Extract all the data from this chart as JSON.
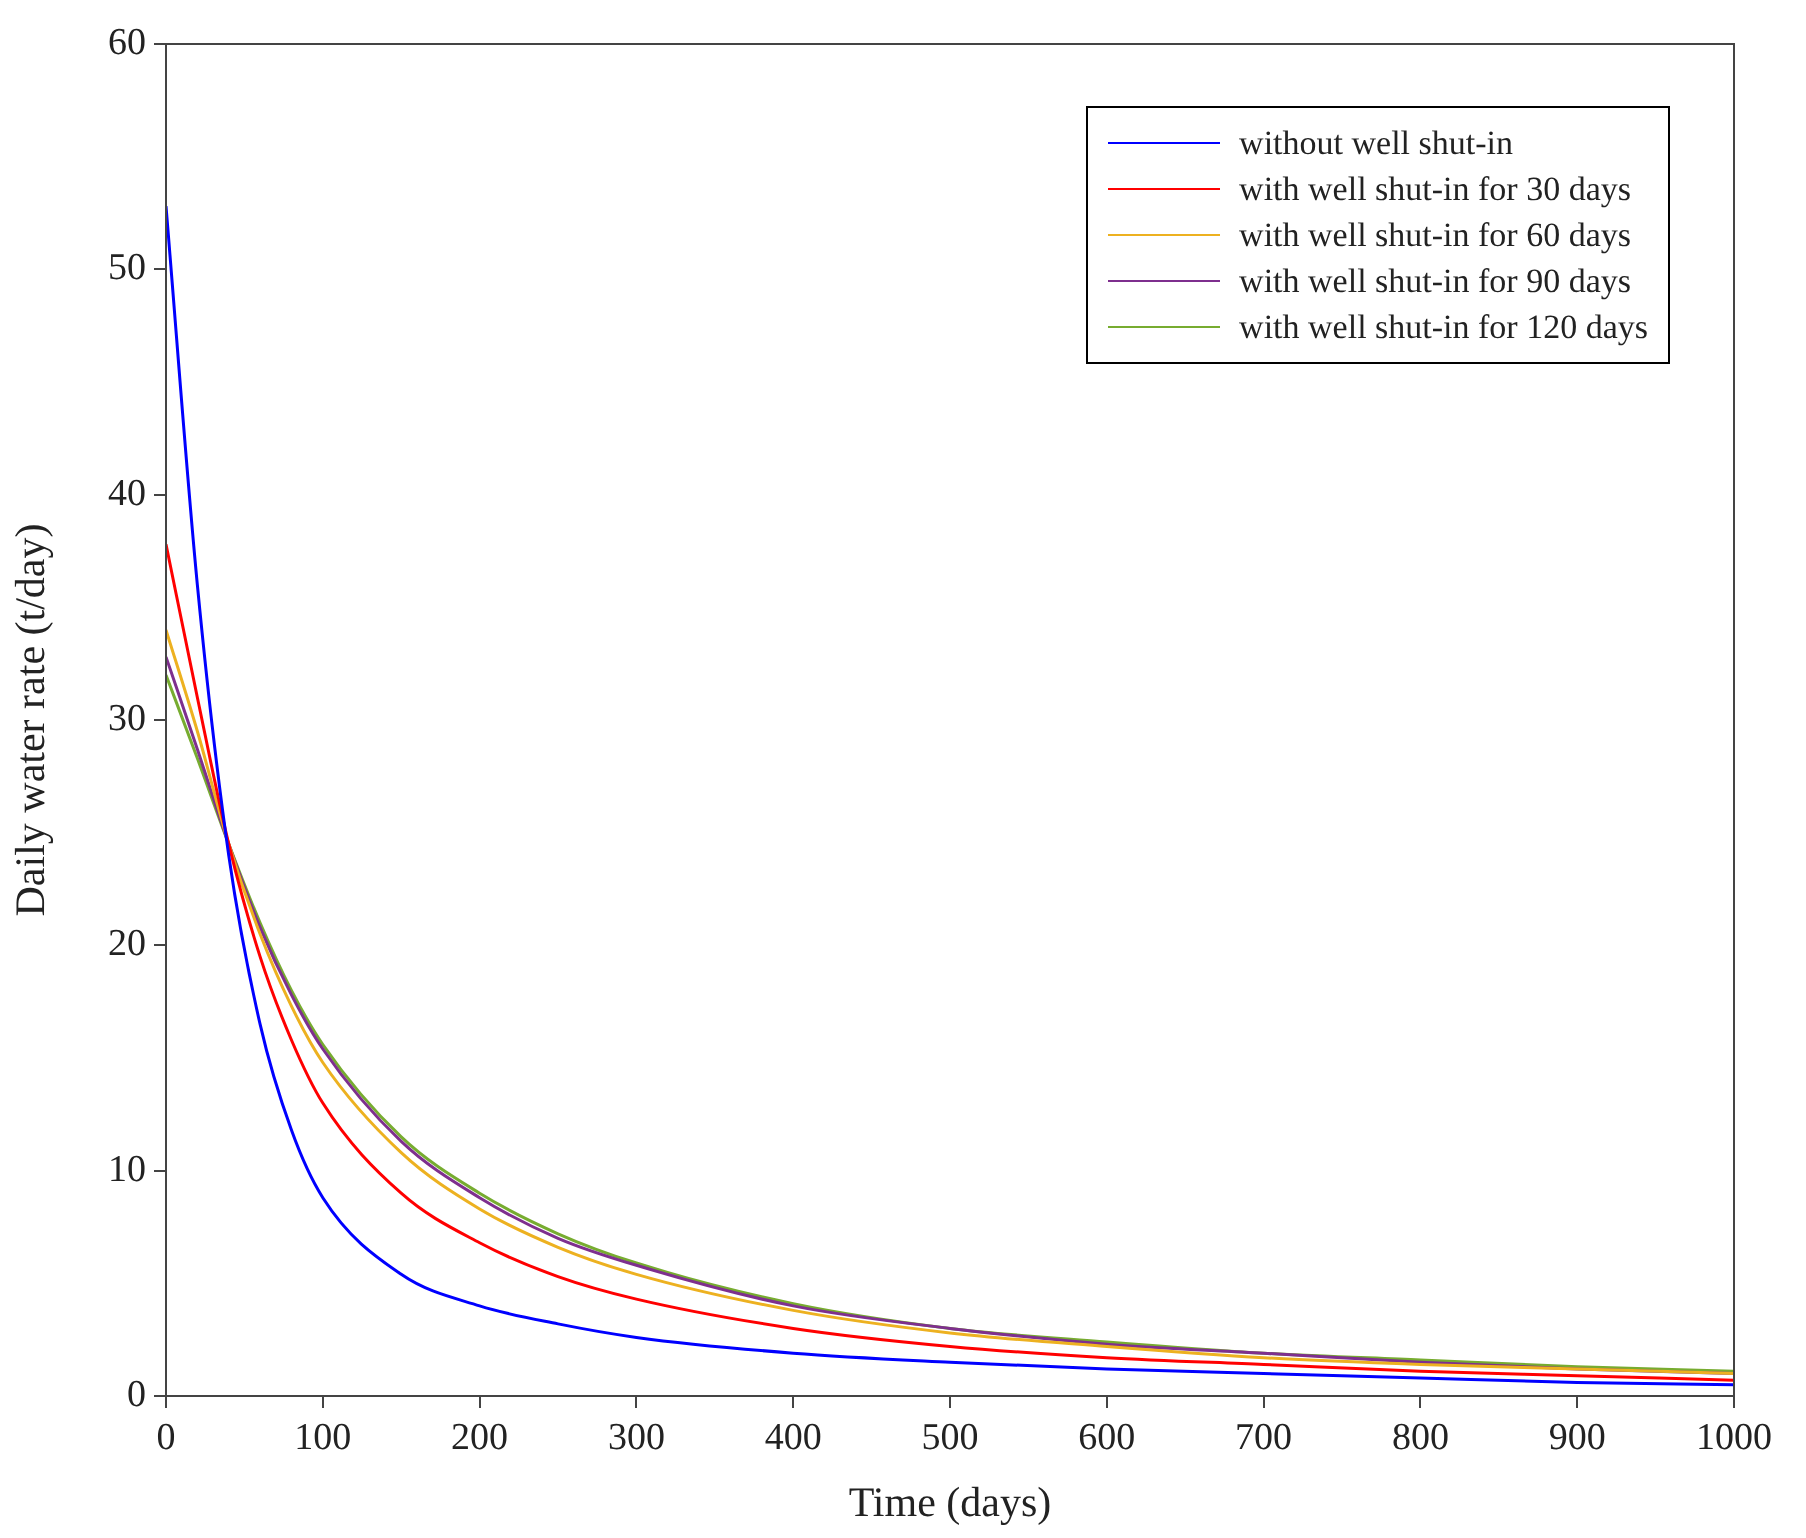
{
  "chart_data": {
    "type": "line",
    "xlabel": "Time (days)",
    "ylabel": "Daily water rate (t/day)",
    "x": [
      0,
      20,
      40,
      60,
      80,
      100,
      150,
      200,
      250,
      300,
      400,
      500,
      600,
      700,
      800,
      900,
      1000
    ],
    "xlim": [
      0,
      1000
    ],
    "xticks": [
      0,
      100,
      200,
      300,
      400,
      500,
      600,
      700,
      800,
      900,
      1000
    ],
    "ylim": [
      0,
      60
    ],
    "yticks": [
      0,
      10,
      20,
      30,
      40,
      50,
      60
    ],
    "grid": false,
    "legend": "top right",
    "marker": "none",
    "line_style": "solid",
    "series": [
      {
        "name": "without well shut-in",
        "color": "#0000ff",
        "values": [
          52.8,
          36,
          24,
          16.5,
          11.8,
          8.8,
          5.4,
          4.0,
          3.2,
          2.6,
          1.9,
          1.5,
          1.2,
          1.0,
          0.8,
          0.6,
          0.5
        ]
      },
      {
        "name": "with well shut-in for 30 days",
        "color": "#ff0000",
        "values": [
          37.8,
          31,
          24.5,
          19.5,
          15.8,
          13.0,
          9.0,
          6.8,
          5.3,
          4.3,
          3.0,
          2.2,
          1.7,
          1.4,
          1.1,
          0.9,
          0.7
        ]
      },
      {
        "name": "with well shut-in for 60 days",
        "color": "#edb120",
        "values": [
          34,
          29.5,
          24.5,
          20.5,
          17.3,
          14.8,
          10.8,
          8.3,
          6.6,
          5.4,
          3.8,
          2.8,
          2.2,
          1.7,
          1.4,
          1.2,
          1.0
        ]
      },
      {
        "name": "with well shut-in for 90 days",
        "color": "#7e2f8e",
        "values": [
          32.8,
          28.7,
          24.5,
          20.8,
          17.8,
          15.4,
          11.3,
          8.8,
          7.0,
          5.8,
          4.0,
          3.0,
          2.3,
          1.9,
          1.5,
          1.2,
          1.0
        ]
      },
      {
        "name": "with well shut-in for 120 days",
        "color": "#77ac30",
        "values": [
          32,
          28.3,
          24.5,
          21,
          18,
          15.6,
          11.5,
          9.0,
          7.2,
          5.9,
          4.1,
          3.0,
          2.4,
          1.9,
          1.6,
          1.3,
          1.1
        ]
      }
    ]
  }
}
